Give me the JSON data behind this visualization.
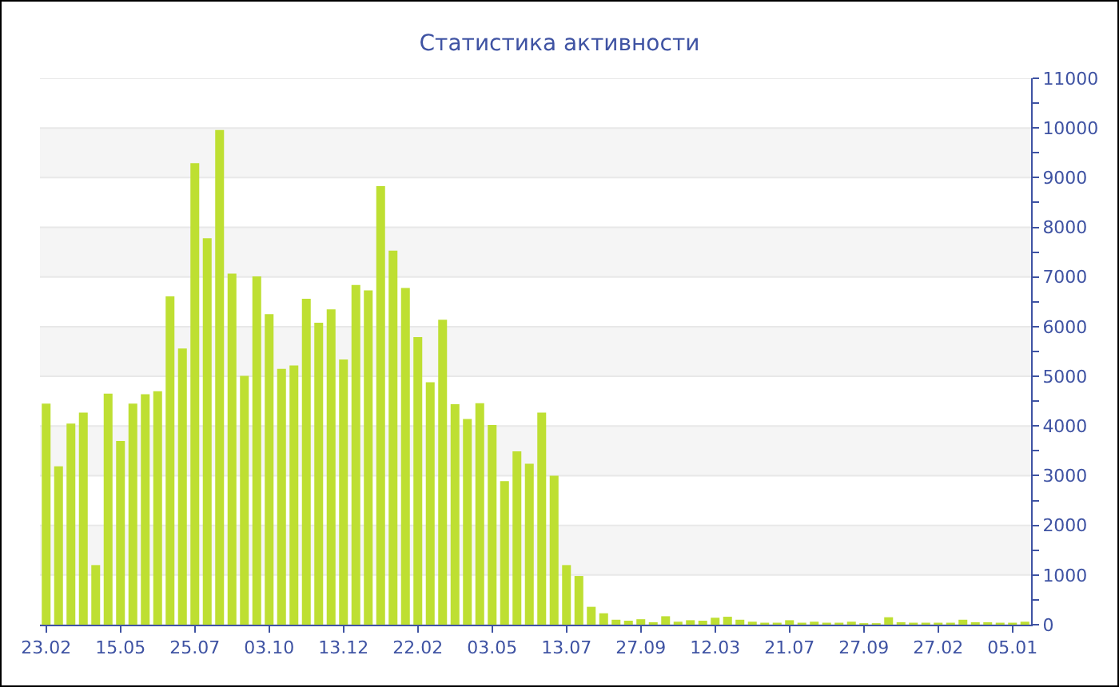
{
  "chart_data": {
    "type": "bar",
    "title": "Статистика активности",
    "categories": [
      "23.02",
      null,
      null,
      null,
      null,
      null,
      "15.05",
      null,
      null,
      null,
      null,
      null,
      "25.07",
      null,
      null,
      null,
      null,
      null,
      "03.10",
      null,
      null,
      null,
      null,
      null,
      "13.12",
      null,
      null,
      null,
      null,
      null,
      "22.02",
      null,
      null,
      null,
      null,
      null,
      "03.05",
      null,
      null,
      null,
      null,
      null,
      "13.07",
      null,
      null,
      null,
      null,
      null,
      "27.09",
      null,
      null,
      null,
      null,
      null,
      "12.03",
      null,
      null,
      null,
      null,
      null,
      "21.07",
      null,
      null,
      null,
      null,
      null,
      "27.09",
      null,
      null,
      null,
      null,
      null,
      "27.02",
      null,
      null,
      null,
      null,
      null,
      "05.01",
      null
    ],
    "values": [
      4450,
      3190,
      4050,
      4270,
      1200,
      4650,
      3700,
      4450,
      4640,
      4700,
      6610,
      5560,
      9290,
      7780,
      9960,
      7070,
      5010,
      7010,
      6250,
      5150,
      5220,
      6560,
      6080,
      6350,
      5340,
      6840,
      6730,
      8830,
      7530,
      6780,
      5790,
      4880,
      6140,
      4440,
      4140,
      4460,
      4020,
      2890,
      3490,
      3240,
      4270,
      3000,
      1200,
      980,
      360,
      230,
      100,
      80,
      110,
      50,
      170,
      60,
      90,
      80,
      140,
      160,
      100,
      60,
      40,
      40,
      90,
      40,
      60,
      40,
      40,
      60,
      30,
      30,
      150,
      50,
      40,
      40,
      40,
      40,
      100,
      50,
      50,
      40,
      40,
      60
    ],
    "color": "#bedf32",
    "ylim": [
      0,
      11000
    ],
    "yticks": [
      0,
      {
        "value": 500,
        "label": null
      },
      1000,
      {
        "value": 1500,
        "label": null
      },
      2000,
      {
        "value": 2500,
        "label": null
      },
      3000,
      {
        "value": 3500,
        "label": null
      },
      4000,
      {
        "value": 4500,
        "label": null
      },
      5000,
      {
        "value": 5500,
        "label": null
      },
      6000,
      {
        "value": 6500,
        "label": null
      },
      7000,
      {
        "value": 7500,
        "label": null
      },
      8000,
      {
        "value": 8500,
        "label": null
      },
      9000,
      {
        "value": 9500,
        "label": null
      },
      10000,
      {
        "value": 10500,
        "label": null
      },
      11000
    ],
    "grid": "y"
  }
}
